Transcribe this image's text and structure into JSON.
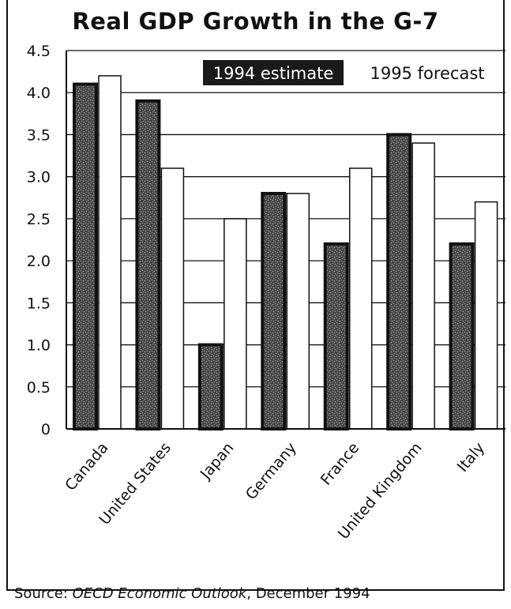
{
  "chart_data": {
    "type": "bar",
    "title": "Real GDP Growth in the G-7",
    "categories": [
      "Canada",
      "United States",
      "Japan",
      "Germany",
      "France",
      "United Kingdom",
      "Italy"
    ],
    "series": [
      {
        "name": "1994 estimate",
        "values": [
          4.1,
          3.9,
          1.0,
          2.8,
          2.2,
          3.5,
          2.2
        ]
      },
      {
        "name": "1995 forecast",
        "values": [
          4.2,
          3.1,
          2.5,
          2.8,
          3.1,
          3.4,
          2.7
        ]
      }
    ],
    "yticks": [
      "0",
      "0.5",
      "1.0",
      "1.5",
      "2.0",
      "2.5",
      "3.0",
      "3.5",
      "4.0",
      "4.5"
    ],
    "ylim": [
      0,
      4.5
    ],
    "grid": true,
    "legend_position": "top-right",
    "colors": {
      "estimate": "#5a5a5a",
      "forecast": "#ffffff",
      "outline": "#111111"
    }
  },
  "source": {
    "prefix": "Source: ",
    "publication": "OECD Economic Outlook",
    "suffix": ", December 1994"
  }
}
